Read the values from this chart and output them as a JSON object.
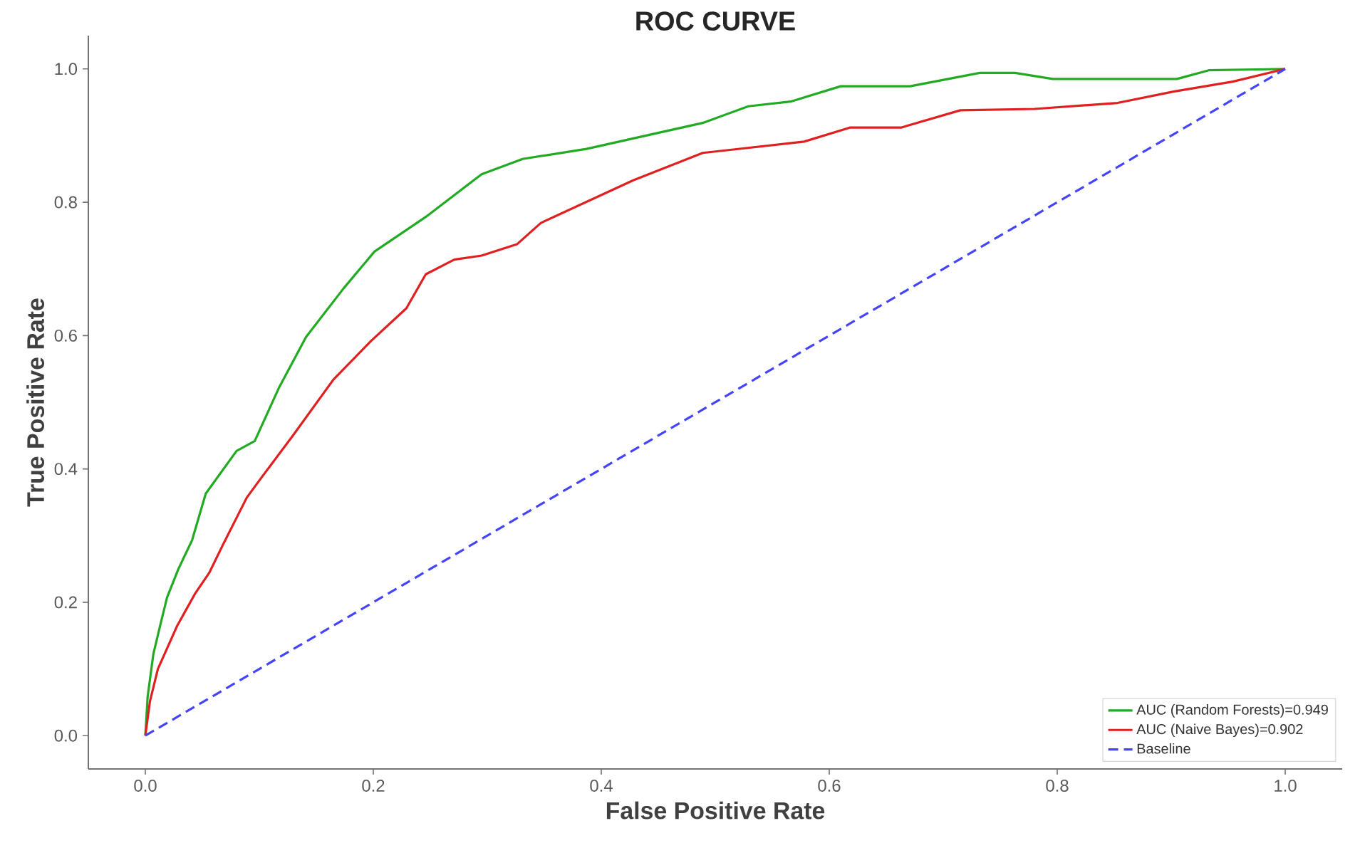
{
  "chart_data": {
    "type": "line",
    "title": "ROC CURVE",
    "xlabel": "False Positive Rate",
    "ylabel": "True Positive Rate",
    "xlim": [
      -0.05,
      1.05
    ],
    "ylim": [
      -0.05,
      1.05
    ],
    "xticks": [
      {
        "value": 0,
        "label": "0.0"
      },
      0.2,
      0.4,
      0.6,
      0.8,
      {
        "value": 1,
        "label": "1.0"
      }
    ],
    "yticks": [
      {
        "value": 0,
        "label": "0.0"
      },
      0.2,
      0.4,
      0.6,
      0.8,
      {
        "value": 1,
        "label": "1.0"
      }
    ],
    "grid": false,
    "legend": "bottom right",
    "marker": "none",
    "series": [
      {
        "name": "AUC (Random Forests)=0.949",
        "color": "#22aa22",
        "line_style": "solid",
        "x": [
          0,
          0.002,
          0.007,
          0.013,
          0.019,
          0.029,
          0.041,
          0.053,
          0.08,
          0.096,
          0.117,
          0.141,
          0.174,
          0.201,
          0.246,
          0.295,
          0.331,
          0.387,
          0.489,
          0.529,
          0.566,
          0.61,
          0.671,
          0.732,
          0.763,
          0.796,
          0.905,
          0.933,
          1
        ],
        "values": [
          0,
          0.058,
          0.122,
          0.165,
          0.207,
          0.25,
          0.293,
          0.363,
          0.427,
          0.442,
          0.521,
          0.598,
          0.671,
          0.726,
          0.778,
          0.842,
          0.865,
          0.88,
          0.919,
          0.944,
          0.951,
          0.974,
          0.974,
          0.994,
          0.994,
          0.985,
          0.985,
          0.998,
          1
        ]
      },
      {
        "name": "AUC (Naive Bayes)=0.902",
        "color": "#e02020",
        "line_style": "solid",
        "x": [
          0,
          0.004,
          0.011,
          0.028,
          0.044,
          0.056,
          0.068,
          0.089,
          0.101,
          0.129,
          0.165,
          0.198,
          0.229,
          0.246,
          0.271,
          0.295,
          0.326,
          0.347,
          0.428,
          0.489,
          0.578,
          0.618,
          0.663,
          0.715,
          0.78,
          0.853,
          0.902,
          0.954,
          1
        ],
        "values": [
          0,
          0.051,
          0.1,
          0.165,
          0.214,
          0.244,
          0.286,
          0.357,
          0.385,
          0.449,
          0.534,
          0.592,
          0.641,
          0.692,
          0.714,
          0.72,
          0.737,
          0.769,
          0.833,
          0.874,
          0.891,
          0.912,
          0.912,
          0.938,
          0.94,
          0.949,
          0.966,
          0.981,
          1
        ]
      },
      {
        "name": "Baseline",
        "color": "#4444ff",
        "line_style": "dashed",
        "x": [
          0,
          1
        ],
        "values": [
          0,
          1
        ]
      }
    ]
  }
}
